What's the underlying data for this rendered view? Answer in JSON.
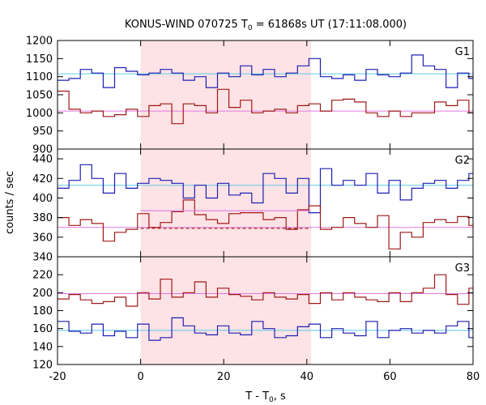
{
  "chart_data": {
    "type": "line",
    "title": "KONUS-WIND 070725 T",
    "title_sub": "0",
    "title_rest": " = 61868s UT (17:11:08.000)",
    "xlabel": "T - T",
    "xlabel_sub": "0",
    "xlabel_rest": ", s",
    "ylabel": "counts / sec",
    "xlim": [
      -20,
      80
    ],
    "xticks": [
      -20,
      0,
      20,
      40,
      60,
      80
    ],
    "interval_x": [
      0,
      41
    ],
    "colors": {
      "blue": "#1f1fb4",
      "red": "#a01818",
      "cyan": "#5fc8e6",
      "pink": "#e07ae0",
      "band": "#fde3e5"
    },
    "panels": [
      {
        "label": "G1",
        "ylim": [
          900,
          1200
        ],
        "yticks": [
          900,
          950,
          1000,
          1050,
          1100,
          1150,
          1200
        ],
        "x": [
          -20,
          -17.25,
          -14.5,
          -11.75,
          -9,
          -6.25,
          -3.5,
          -0.75,
          2,
          4.75,
          7.5,
          10.25,
          13,
          15.75,
          18.5,
          21.25,
          24,
          26.75,
          29.5,
          32.25,
          35,
          37.75,
          40.5,
          43.25,
          46,
          48.75,
          51.5,
          54.25,
          57,
          59.75,
          62.5,
          65.25,
          68,
          70.75,
          73.5,
          76.25,
          79,
          80
        ],
        "series": [
          {
            "name": "blue",
            "values": [
              1090,
              1095,
              1120,
              1110,
              1070,
              1125,
              1115,
              1105,
              1110,
              1120,
              1110,
              1090,
              1100,
              1070,
              1110,
              1100,
              1130,
              1105,
              1120,
              1100,
              1110,
              1130,
              1150,
              1100,
              1095,
              1105,
              1090,
              1120,
              1105,
              1100,
              1110,
              1160,
              1130,
              1120,
              1070,
              1110,
              1095,
              1115
            ]
          },
          {
            "name": "red",
            "values": [
              1060,
              1010,
              1000,
              1005,
              990,
              995,
              1010,
              990,
              1020,
              1025,
              970,
              1025,
              1020,
              1000,
              1065,
              1015,
              1035,
              1000,
              1005,
              1010,
              1000,
              1020,
              1025,
              1005,
              1035,
              1038,
              1030,
              1000,
              990,
              1005,
              990,
              1000,
              1000,
              1030,
              1020,
              1035,
              1000,
              1020
            ]
          }
        ],
        "refs": [
          {
            "color": "cyan",
            "value": 1108
          },
          {
            "color": "pink",
            "value": 1005
          }
        ],
        "interval_refs": []
      },
      {
        "label": "G2",
        "ylim": [
          340,
          450
        ],
        "yticks": [
          340,
          360,
          380,
          400,
          420,
          440
        ],
        "x": [
          -20,
          -17.25,
          -14.5,
          -11.75,
          -9,
          -6.25,
          -3.5,
          -0.75,
          2,
          4.75,
          7.5,
          10.25,
          13,
          15.75,
          18.5,
          21.25,
          24,
          26.75,
          29.5,
          32.25,
          35,
          37.75,
          40.5,
          43.25,
          46,
          48.75,
          51.5,
          54.25,
          57,
          59.75,
          62.5,
          65.25,
          68,
          70.75,
          73.5,
          76.25,
          79,
          80
        ],
        "series": [
          {
            "name": "blue",
            "values": [
              410,
              418,
              434,
              420,
              405,
              425,
              410,
              415,
              420,
              418,
              415,
              400,
              413,
              400,
              415,
              403,
              405,
              395,
              425,
              420,
              405,
              420,
              385,
              430,
              413,
              418,
              413,
              425,
              405,
              418,
              398,
              410,
              415,
              418,
              410,
              418,
              425,
              430
            ]
          },
          {
            "name": "red",
            "values": [
              380,
              372,
              378,
              374,
              356,
              365,
              368,
              384,
              370,
              375,
              386,
              398,
              383,
              378,
              374,
              384,
              385,
              385,
              378,
              380,
              368,
              388,
              392,
              368,
              370,
              380,
              374,
              370,
              382,
              348,
              365,
              360,
              375,
              378,
              375,
              381,
              372,
              365
            ]
          }
        ],
        "refs": [
          {
            "color": "cyan",
            "value": 413
          },
          {
            "color": "pink",
            "value": 370
          }
        ],
        "interval_refs": [
          {
            "color": "pink",
            "value": 387,
            "style": "solid"
          },
          {
            "color": "red",
            "value": 369,
            "style": "dashed"
          }
        ]
      },
      {
        "label": "G3",
        "ylim": [
          120,
          240
        ],
        "yticks": [
          120,
          140,
          160,
          180,
          200,
          220
        ],
        "x": [
          -20,
          -17.25,
          -14.5,
          -11.75,
          -9,
          -6.25,
          -3.5,
          -0.75,
          2,
          4.75,
          7.5,
          10.25,
          13,
          15.75,
          18.5,
          21.25,
          24,
          26.75,
          29.5,
          32.25,
          35,
          37.75,
          40.5,
          43.25,
          46,
          48.75,
          51.5,
          54.25,
          57,
          59.75,
          62.5,
          65.25,
          68,
          70.75,
          73.5,
          76.25,
          79,
          80
        ],
        "series": [
          {
            "name": "blue",
            "values": [
              168,
              157,
              155,
              165,
              152,
              157,
              150,
              165,
              147,
              150,
              172,
              163,
              155,
              153,
              163,
              155,
              153,
              168,
              160,
              150,
              152,
              162,
              165,
              150,
              160,
              155,
              152,
              168,
              150,
              158,
              160,
              155,
              158,
              155,
              163,
              168,
              150,
              160
            ]
          },
          {
            "name": "red",
            "values": [
              193,
              198,
              192,
              188,
              190,
              195,
              185,
              200,
              193,
              215,
              195,
              200,
              212,
              195,
              205,
              198,
              196,
              192,
              200,
              195,
              193,
              198,
              188,
              200,
              192,
              200,
              195,
              192,
              190,
              200,
              190,
              200,
              205,
              220,
              198,
              187,
              205,
              192
            ]
          }
        ],
        "refs": [
          {
            "color": "cyan",
            "value": 158
          },
          {
            "color": "pink",
            "value": 199
          }
        ],
        "interval_refs": []
      }
    ]
  }
}
